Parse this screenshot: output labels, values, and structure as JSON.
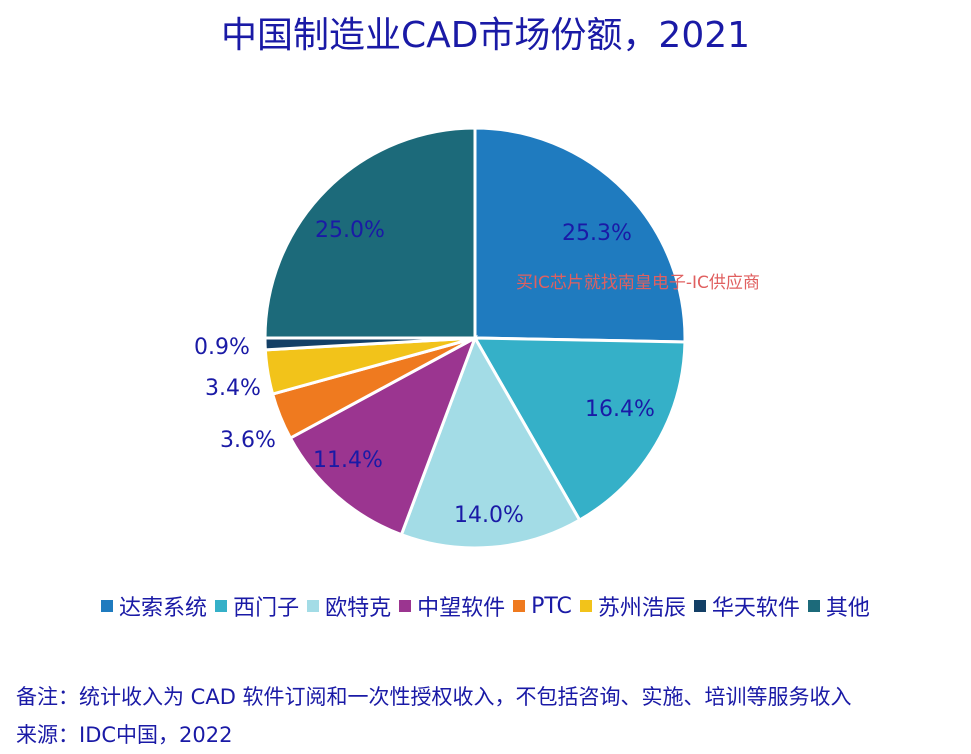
{
  "title": "中国制造业CAD市场份额，2021",
  "watermark": "买IC芯片就找南皇电子-IC供应商",
  "chart_data": {
    "type": "pie",
    "title": "中国制造业CAD市场份额，2021",
    "slices": [
      {
        "name": "达索系统",
        "value": 25.3,
        "label": "25.3%",
        "color": "#1f7bbf"
      },
      {
        "name": "西门子",
        "value": 16.4,
        "label": "16.4%",
        "color": "#35b0c8"
      },
      {
        "name": "欧特克",
        "value": 14.0,
        "label": "14.0%",
        "color": "#a3dce6"
      },
      {
        "name": "中望软件",
        "value": 11.4,
        "label": "11.4%",
        "color": "#9b3590"
      },
      {
        "name": "PTC",
        "value": 3.6,
        "label": "3.6%",
        "color": "#ef7a1f"
      },
      {
        "name": "苏州浩辰",
        "value": 3.4,
        "label": "3.4%",
        "color": "#f2c31a"
      },
      {
        "name": "华天软件",
        "value": 0.9,
        "label": "0.9%",
        "color": "#133f66"
      },
      {
        "name": "其他",
        "value": 25.0,
        "label": "25.0%",
        "color": "#1c6a7a"
      }
    ],
    "legend_position": "bottom"
  },
  "notes": {
    "remark": "备注：统计收入为 CAD 软件订阅和一次性授权收入，不包括咨询、实施、培训等服务收入",
    "source": "来源：IDC中国，2022"
  }
}
